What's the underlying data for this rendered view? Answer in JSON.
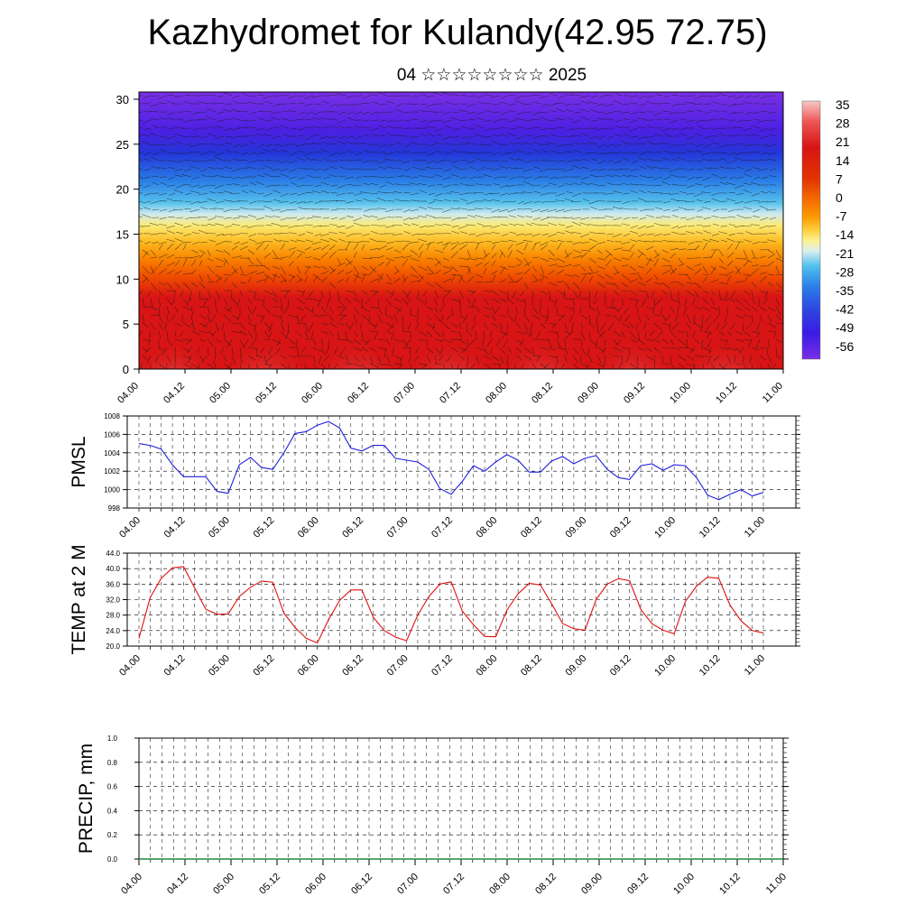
{
  "header": {
    "title": "Kazhydromet for Kulandy(42.95 72.75)",
    "subtitle": "04 ☆☆☆☆☆☆☆☆ 2025"
  },
  "chart_data": [
    {
      "type": "heatmap",
      "title": "",
      "xlabel": "",
      "ylabel": "",
      "x_ticks": [
        "04.00",
        "04.12",
        "05.00",
        "05.12",
        "06.00",
        "06.12",
        "07.00",
        "07.12",
        "08.00",
        "08.12",
        "09.00",
        "09.12",
        "10.00",
        "10.12",
        "11.00"
      ],
      "y_ticks": [
        0,
        5,
        10,
        15,
        20,
        25,
        30
      ],
      "ylim": [
        0,
        30.8
      ],
      "overlay": "wind vectors",
      "colorbar": {
        "labels": [
          "35",
          "28",
          "21",
          "14",
          "7",
          "0",
          "-7",
          "-14",
          "-21",
          "-28",
          "-35",
          "-42",
          "-49",
          "-56"
        ],
        "colors": [
          "#f7c2c2",
          "#ef5a5a",
          "#d81515",
          "#e12a00",
          "#f25800",
          "#f98a00",
          "#fdbd20",
          "#fdef7e",
          "#dcefee",
          "#34b8ee",
          "#2a7ee8",
          "#2e3fe0",
          "#3a1ce4",
          "#7a2ee6"
        ]
      },
      "description_levels": "warm red near surface, orange/yellow 13-17, cyan/blue 18-25, violet above 26"
    },
    {
      "type": "line",
      "ylabel": "PMSL",
      "ylim": [
        998,
        1008
      ],
      "y_ticks": [
        998,
        1000,
        1002,
        1004,
        1006,
        1008
      ],
      "x_ticks": [
        "04.00",
        "04.12",
        "05.00",
        "05.12",
        "06.00",
        "06.12",
        "07.00",
        "07.12",
        "08.00",
        "08.12",
        "09.00",
        "09.12",
        "10.00",
        "10.12",
        "11.00"
      ],
      "series": [
        {
          "color": "#1f1fdd",
          "values": [
            1005.0,
            1004.8,
            1004.4,
            1002.7,
            1001.4,
            1001.4,
            1001.4,
            999.8,
            999.6,
            1002.7,
            1003.5,
            1002.4,
            1002.2,
            1004.0,
            1006.1,
            1006.3,
            1007.0,
            1007.4,
            1006.7,
            1004.5,
            1004.2,
            1004.8,
            1004.8,
            1003.4,
            1003.2,
            1003.0,
            1002.2,
            1000.1,
            999.5,
            1000.9,
            1002.6,
            1002.0,
            1003.0,
            1003.8,
            1003.2,
            1001.9,
            1001.9,
            1003.1,
            1003.6,
            1002.8,
            1003.4,
            1003.7,
            1002.2,
            1001.3,
            1001.1,
            1002.6,
            1002.8,
            1002.1,
            1002.7,
            1002.6,
            1001.3,
            999.4,
            998.9,
            999.5,
            1000.0,
            999.3,
            999.7
          ]
        }
      ]
    },
    {
      "type": "line",
      "ylabel": "TEMP at 2 M",
      "ylim": [
        20,
        44
      ],
      "y_ticks": [
        "20.0",
        "24.0",
        "28.0",
        "32.0",
        "36.0",
        "40.0",
        "44.0"
      ],
      "x_ticks": [
        "04.00",
        "04.12",
        "05.00",
        "05.12",
        "06.00",
        "06.12",
        "07.00",
        "07.12",
        "08.00",
        "08.12",
        "09.00",
        "09.12",
        "10.00",
        "10.12",
        "11.00"
      ],
      "series": [
        {
          "color": "#e01010",
          "values": [
            22.0,
            32.5,
            37.5,
            40.2,
            40.5,
            35.0,
            29.5,
            28.2,
            28.3,
            32.8,
            35.2,
            36.8,
            36.5,
            28.5,
            24.8,
            22.0,
            20.8,
            26.8,
            31.8,
            34.5,
            34.5,
            27.5,
            24.0,
            22.3,
            21.4,
            28.0,
            32.8,
            36.0,
            36.6,
            29.0,
            25.5,
            22.5,
            22.4,
            29.3,
            33.5,
            36.2,
            35.8,
            31.0,
            25.8,
            24.5,
            24.1,
            32.0,
            36.0,
            37.4,
            36.9,
            29.5,
            25.8,
            24.1,
            23.2,
            31.5,
            35.5,
            37.8,
            37.5,
            30.6,
            26.5,
            24.0,
            23.4
          ]
        }
      ]
    },
    {
      "type": "line",
      "ylabel": "PRECIP, mm",
      "ylim": [
        0,
        1
      ],
      "y_ticks": [
        "0.0",
        "0.2",
        "0.4",
        "0.6",
        "0.8",
        "1.0"
      ],
      "x_ticks": [
        "04.00",
        "04.12",
        "05.00",
        "05.12",
        "06.00",
        "06.12",
        "07.00",
        "07.12",
        "08.00",
        "08.12",
        "09.00",
        "09.12",
        "10.00",
        "10.12",
        "11.00"
      ],
      "series": [
        {
          "color": "#1f8a3b",
          "values": [
            0,
            0,
            0,
            0,
            0,
            0,
            0,
            0,
            0,
            0,
            0,
            0,
            0,
            0,
            0,
            0,
            0,
            0,
            0,
            0,
            0,
            0,
            0,
            0,
            0,
            0,
            0,
            0,
            0,
            0,
            0,
            0,
            0,
            0,
            0,
            0,
            0,
            0,
            0,
            0,
            0,
            0,
            0,
            0,
            0,
            0,
            0,
            0,
            0,
            0,
            0,
            0,
            0,
            0,
            0,
            0,
            0
          ]
        }
      ]
    }
  ]
}
